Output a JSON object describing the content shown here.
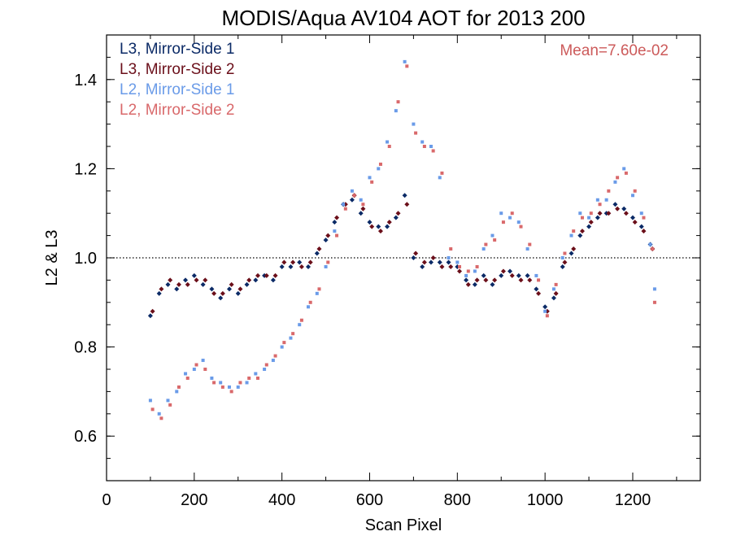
{
  "chart_data": {
    "type": "scatter",
    "title": "MODIS/Aqua AV104 AOT for 2013 200",
    "xlabel": "Scan Pixel",
    "ylabel": "L2 & L3",
    "xlim": [
      0,
      1354
    ],
    "ylim": [
      0.5,
      1.5
    ],
    "x_ticks": [
      0,
      200,
      400,
      600,
      800,
      1000,
      1200
    ],
    "y_ticks": [
      0.6,
      0.8,
      1.0,
      1.2,
      1.4
    ],
    "x_tick_labels": [
      "0",
      "200",
      "400",
      "600",
      "800",
      "1000",
      "1200"
    ],
    "y_tick_labels": [
      "0.6",
      "0.8",
      "1.0",
      "1.2",
      "1.4"
    ],
    "reference_line": {
      "y": 1.0,
      "style": "dotted"
    },
    "annotation": "Mean=7.60e-02",
    "annotation_color": "#cc5a5a",
    "legend_position": "top-left",
    "series": [
      {
        "name": "L3, Mirror-Side 1",
        "color": "#0b2a66",
        "marker": "diamond",
        "x": [
          100,
          120,
          140,
          160,
          180,
          200,
          220,
          240,
          260,
          280,
          300,
          320,
          340,
          360,
          380,
          400,
          420,
          440,
          460,
          480,
          500,
          520,
          540,
          560,
          580,
          600,
          620,
          640,
          660,
          680,
          700,
          720,
          740,
          760,
          780,
          800,
          820,
          840,
          860,
          880,
          900,
          920,
          940,
          960,
          980,
          1000,
          1020,
          1040,
          1060,
          1080,
          1100,
          1120,
          1140,
          1160,
          1180,
          1200,
          1220,
          1240
        ],
        "y": [
          0.87,
          0.92,
          0.94,
          0.93,
          0.95,
          0.96,
          0.94,
          0.93,
          0.91,
          0.93,
          0.92,
          0.94,
          0.95,
          0.96,
          0.95,
          0.98,
          0.98,
          0.99,
          0.98,
          1.01,
          1.04,
          1.08,
          1.12,
          1.13,
          1.1,
          1.08,
          1.07,
          1.07,
          1.09,
          1.14,
          1.0,
          0.98,
          0.99,
          0.99,
          0.99,
          0.98,
          0.95,
          0.94,
          0.96,
          0.94,
          0.96,
          0.97,
          0.96,
          0.96,
          0.93,
          0.89,
          0.91,
          0.98,
          1.01,
          1.05,
          1.07,
          1.09,
          1.1,
          1.12,
          1.11,
          1.09,
          1.07,
          1.03
        ]
      },
      {
        "name": "L3, Mirror-Side 2",
        "color": "#6b0f1a",
        "marker": "diamond",
        "x": [
          105,
          125,
          145,
          165,
          185,
          205,
          225,
          245,
          265,
          285,
          305,
          325,
          345,
          365,
          385,
          405,
          425,
          445,
          465,
          485,
          505,
          525,
          545,
          565,
          585,
          605,
          625,
          645,
          665,
          685,
          705,
          725,
          745,
          765,
          785,
          805,
          825,
          845,
          865,
          885,
          905,
          925,
          945,
          965,
          985,
          1005,
          1025,
          1045,
          1065,
          1085,
          1105,
          1125,
          1145,
          1165,
          1185,
          1205,
          1225,
          1245
        ],
        "y": [
          0.88,
          0.93,
          0.95,
          0.94,
          0.94,
          0.95,
          0.95,
          0.92,
          0.92,
          0.94,
          0.93,
          0.95,
          0.96,
          0.96,
          0.96,
          0.99,
          0.99,
          0.98,
          0.99,
          1.02,
          1.05,
          1.09,
          1.12,
          1.14,
          1.11,
          1.07,
          1.06,
          1.08,
          1.1,
          1.12,
          1.01,
          0.99,
          1.0,
          0.98,
          0.98,
          0.97,
          0.94,
          0.95,
          0.95,
          0.95,
          0.97,
          0.96,
          0.95,
          0.95,
          0.92,
          0.88,
          0.92,
          0.99,
          1.02,
          1.06,
          1.08,
          1.1,
          1.1,
          1.11,
          1.1,
          1.08,
          1.06,
          1.02
        ]
      },
      {
        "name": "L2, Mirror-Side 1",
        "color": "#6a9be8",
        "marker": "square",
        "x": [
          100,
          120,
          140,
          160,
          180,
          200,
          220,
          240,
          260,
          280,
          300,
          320,
          340,
          360,
          380,
          400,
          420,
          440,
          460,
          480,
          500,
          520,
          540,
          560,
          580,
          600,
          620,
          640,
          660,
          680,
          700,
          720,
          740,
          760,
          780,
          800,
          820,
          840,
          860,
          880,
          900,
          920,
          940,
          960,
          980,
          1000,
          1020,
          1040,
          1060,
          1080,
          1100,
          1120,
          1140,
          1160,
          1180,
          1200,
          1220,
          1240,
          1250
        ],
        "y": [
          0.68,
          0.65,
          0.68,
          0.7,
          0.74,
          0.75,
          0.77,
          0.73,
          0.72,
          0.71,
          0.71,
          0.72,
          0.74,
          0.75,
          0.77,
          0.8,
          0.82,
          0.85,
          0.89,
          0.92,
          0.98,
          1.06,
          1.12,
          1.15,
          1.13,
          1.18,
          1.2,
          1.26,
          1.33,
          1.44,
          1.3,
          1.26,
          1.25,
          1.18,
          1.0,
          0.99,
          0.96,
          0.97,
          1.02,
          1.05,
          1.1,
          1.09,
          1.08,
          1.02,
          0.96,
          0.88,
          0.93,
          1.0,
          1.05,
          1.1,
          1.09,
          1.13,
          1.13,
          1.17,
          1.2,
          1.14,
          1.1,
          1.03,
          0.93
        ]
      },
      {
        "name": "L2, Mirror-Side 2",
        "color": "#d9696b",
        "marker": "square",
        "x": [
          105,
          125,
          145,
          165,
          185,
          205,
          225,
          245,
          265,
          285,
          305,
          325,
          345,
          365,
          385,
          405,
          425,
          445,
          465,
          485,
          505,
          525,
          545,
          565,
          585,
          605,
          625,
          645,
          665,
          685,
          705,
          725,
          745,
          765,
          785,
          805,
          825,
          845,
          865,
          885,
          905,
          925,
          945,
          965,
          985,
          1005,
          1025,
          1045,
          1065,
          1085,
          1105,
          1125,
          1145,
          1165,
          1185,
          1205,
          1225,
          1245,
          1250
        ],
        "y": [
          0.66,
          0.64,
          0.67,
          0.71,
          0.73,
          0.76,
          0.75,
          0.72,
          0.71,
          0.7,
          0.72,
          0.73,
          0.73,
          0.76,
          0.78,
          0.81,
          0.83,
          0.86,
          0.9,
          0.93,
          0.99,
          1.05,
          1.11,
          1.14,
          1.12,
          1.17,
          1.21,
          1.25,
          1.35,
          1.43,
          1.28,
          1.25,
          1.24,
          1.19,
          1.02,
          0.98,
          0.97,
          0.98,
          1.03,
          1.04,
          1.08,
          1.1,
          1.07,
          1.03,
          0.95,
          0.87,
          0.94,
          1.01,
          1.06,
          1.09,
          1.1,
          1.12,
          1.15,
          1.18,
          1.19,
          1.15,
          1.09,
          1.02,
          0.9
        ]
      }
    ]
  }
}
